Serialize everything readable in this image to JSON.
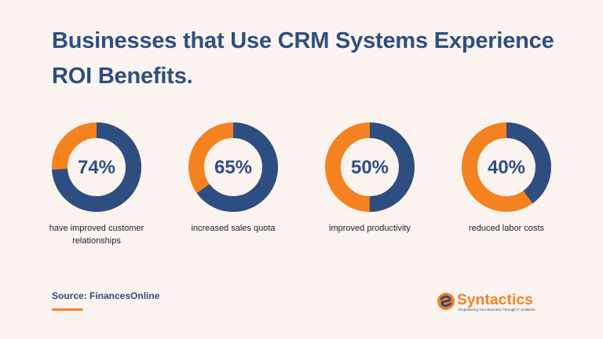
{
  "title": "Businesses that Use CRM Systems Experience ROI Benefits.",
  "colors": {
    "orange": "#f58220",
    "navy": "#2e4e82",
    "background": "#fbf3ef"
  },
  "chart_data": {
    "type": "pie",
    "title": "Businesses that Use CRM Systems Experience ROI Benefits.",
    "items": [
      {
        "value": 74,
        "label": "74%",
        "caption": "have improved customer relationships"
      },
      {
        "value": 65,
        "label": "65%",
        "caption": "increased sales quota"
      },
      {
        "value": 50,
        "label": "50%",
        "caption": "improved productivity"
      },
      {
        "value": 40,
        "label": "40%",
        "caption": "reduced labor costs"
      }
    ]
  },
  "source": "Source: FinancesOnline",
  "logo": {
    "name": "Syntactics",
    "tagline": "Empowering Your Business Through IT Solutions"
  }
}
